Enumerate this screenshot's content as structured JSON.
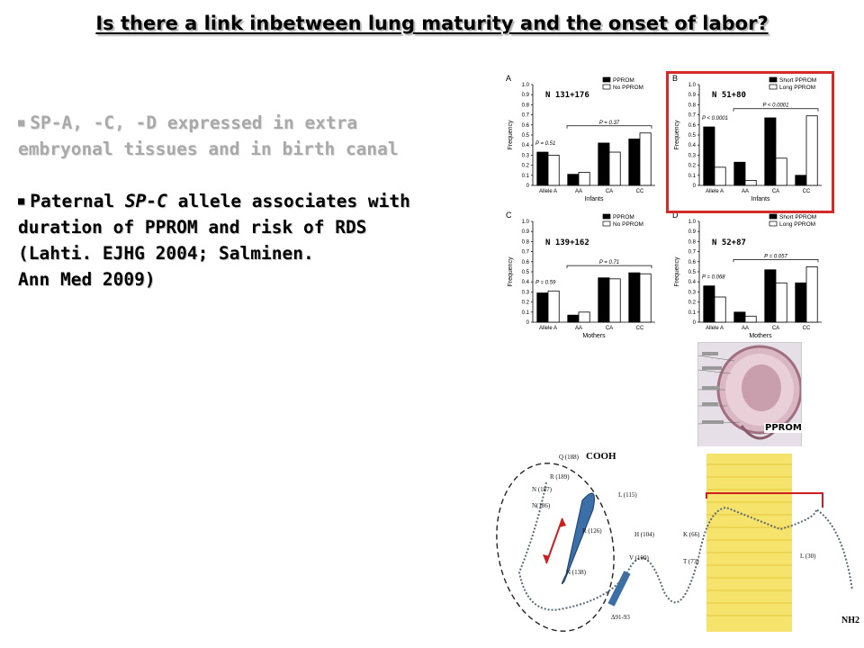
{
  "title": "Is there a link inbetween lung maturity and the onset of labor?",
  "bullets": {
    "b1_line1": "SP-A, -C, -D expressed in extra",
    "b1_line2": "embryonal tissues and in birth canal",
    "b2_pre": "Paternal ",
    "b2_italic": "SP-C",
    "b2_post": " allele associates with",
    "b2_line2": "duration of PPROM and risk of RDS",
    "b2_line3": "(Lahti. EJHG 2004; Salminen.",
    "b2_line4": "Ann Med 2009)"
  },
  "colors": {
    "highlight_border": "#d42a2a",
    "bar_dark": "#000000",
    "bar_light": "#ffffff",
    "membrane": "#f7e15a",
    "helix": "#3a6fa8"
  },
  "chart_data": [
    {
      "type": "bar",
      "panel": "A",
      "n_label": "N 131+176",
      "categories": [
        "Allele A",
        "AA",
        "CA",
        "CC"
      ],
      "xlabel": "Infants",
      "ylabel": "Frequency",
      "yticks": [
        "0",
        "0.1",
        "0.2",
        "0.3",
        "0.4",
        "0.5",
        "0.6",
        "0.7",
        "0.8",
        "0.9",
        "1.0"
      ],
      "ylim": [
        0,
        1.0
      ],
      "series": [
        {
          "name": "PPROM",
          "values": [
            0.33,
            0.11,
            0.42,
            0.46
          ]
        },
        {
          "name": "No PPROM",
          "values": [
            0.3,
            0.13,
            0.33,
            0.52
          ]
        }
      ],
      "p_single": "P = 0.51",
      "p_geno": "P = 0.37"
    },
    {
      "type": "bar",
      "panel": "B",
      "n_label": "N 51+80",
      "categories": [
        "Allele A",
        "AA",
        "CA",
        "CC"
      ],
      "xlabel": "Infants",
      "ylabel": "Frequency",
      "yticks": [
        "0",
        "0.1",
        "0.2",
        "0.3",
        "0.4",
        "0.5",
        "0.6",
        "0.7",
        "0.8",
        "0.9",
        "1.0"
      ],
      "ylim": [
        0,
        1.0
      ],
      "series": [
        {
          "name": "Short PPROM",
          "values": [
            0.58,
            0.23,
            0.67,
            0.1
          ]
        },
        {
          "name": "Long PPROM",
          "values": [
            0.18,
            0.05,
            0.27,
            0.69
          ]
        }
      ],
      "p_single": "P < 0.0001",
      "p_geno": "P < 0.0001"
    },
    {
      "type": "bar",
      "panel": "C",
      "n_label": "N 139+162",
      "categories": [
        "Allele A",
        "AA",
        "CA",
        "CC"
      ],
      "xlabel": "Mothers",
      "ylabel": "Frequency",
      "yticks": [
        "0",
        "0.1",
        "0.2",
        "0.3",
        "0.4",
        "0.5",
        "0.6",
        "0.7",
        "0.8",
        "0.9",
        "1.0"
      ],
      "ylim": [
        0,
        1.0
      ],
      "series": [
        {
          "name": "PPROM",
          "values": [
            0.29,
            0.07,
            0.44,
            0.49
          ]
        },
        {
          "name": "No PPROM",
          "values": [
            0.31,
            0.1,
            0.43,
            0.48
          ]
        }
      ],
      "p_single": "P = 0.59",
      "p_geno": "P = 0.71"
    },
    {
      "type": "bar",
      "panel": "D",
      "n_label": "N 52+87",
      "categories": [
        "Allele A",
        "AA",
        "CA",
        "CC"
      ],
      "xlabel": "Mothers",
      "ylabel": "Frequency",
      "yticks": [
        "0",
        "0.1",
        "0.2",
        "0.3",
        "0.4",
        "0.5",
        "0.6",
        "0.7",
        "0.8",
        "0.9",
        "1.0"
      ],
      "ylim": [
        0,
        1.0
      ],
      "series": [
        {
          "name": "Short PPROM",
          "values": [
            0.36,
            0.1,
            0.52,
            0.39
          ]
        },
        {
          "name": "Long PPROM",
          "values": [
            0.25,
            0.06,
            0.39,
            0.55
          ]
        }
      ],
      "p_single": "P = 0.068",
      "p_geno": "P = 0.057"
    }
  ],
  "fetus_figure": {
    "label": "PPROM"
  },
  "protein_figure": {
    "terminal_c": "COOH",
    "terminal_n": "NH2",
    "residues": [
      "Q (188)",
      "R (189)",
      "N (187)",
      "N(186)",
      "L (115)",
      "R (126)",
      "H (104)",
      "K (66)",
      "V (100)",
      "T (73)",
      "N (138)",
      "L (30)",
      "Δ91-93"
    ]
  }
}
